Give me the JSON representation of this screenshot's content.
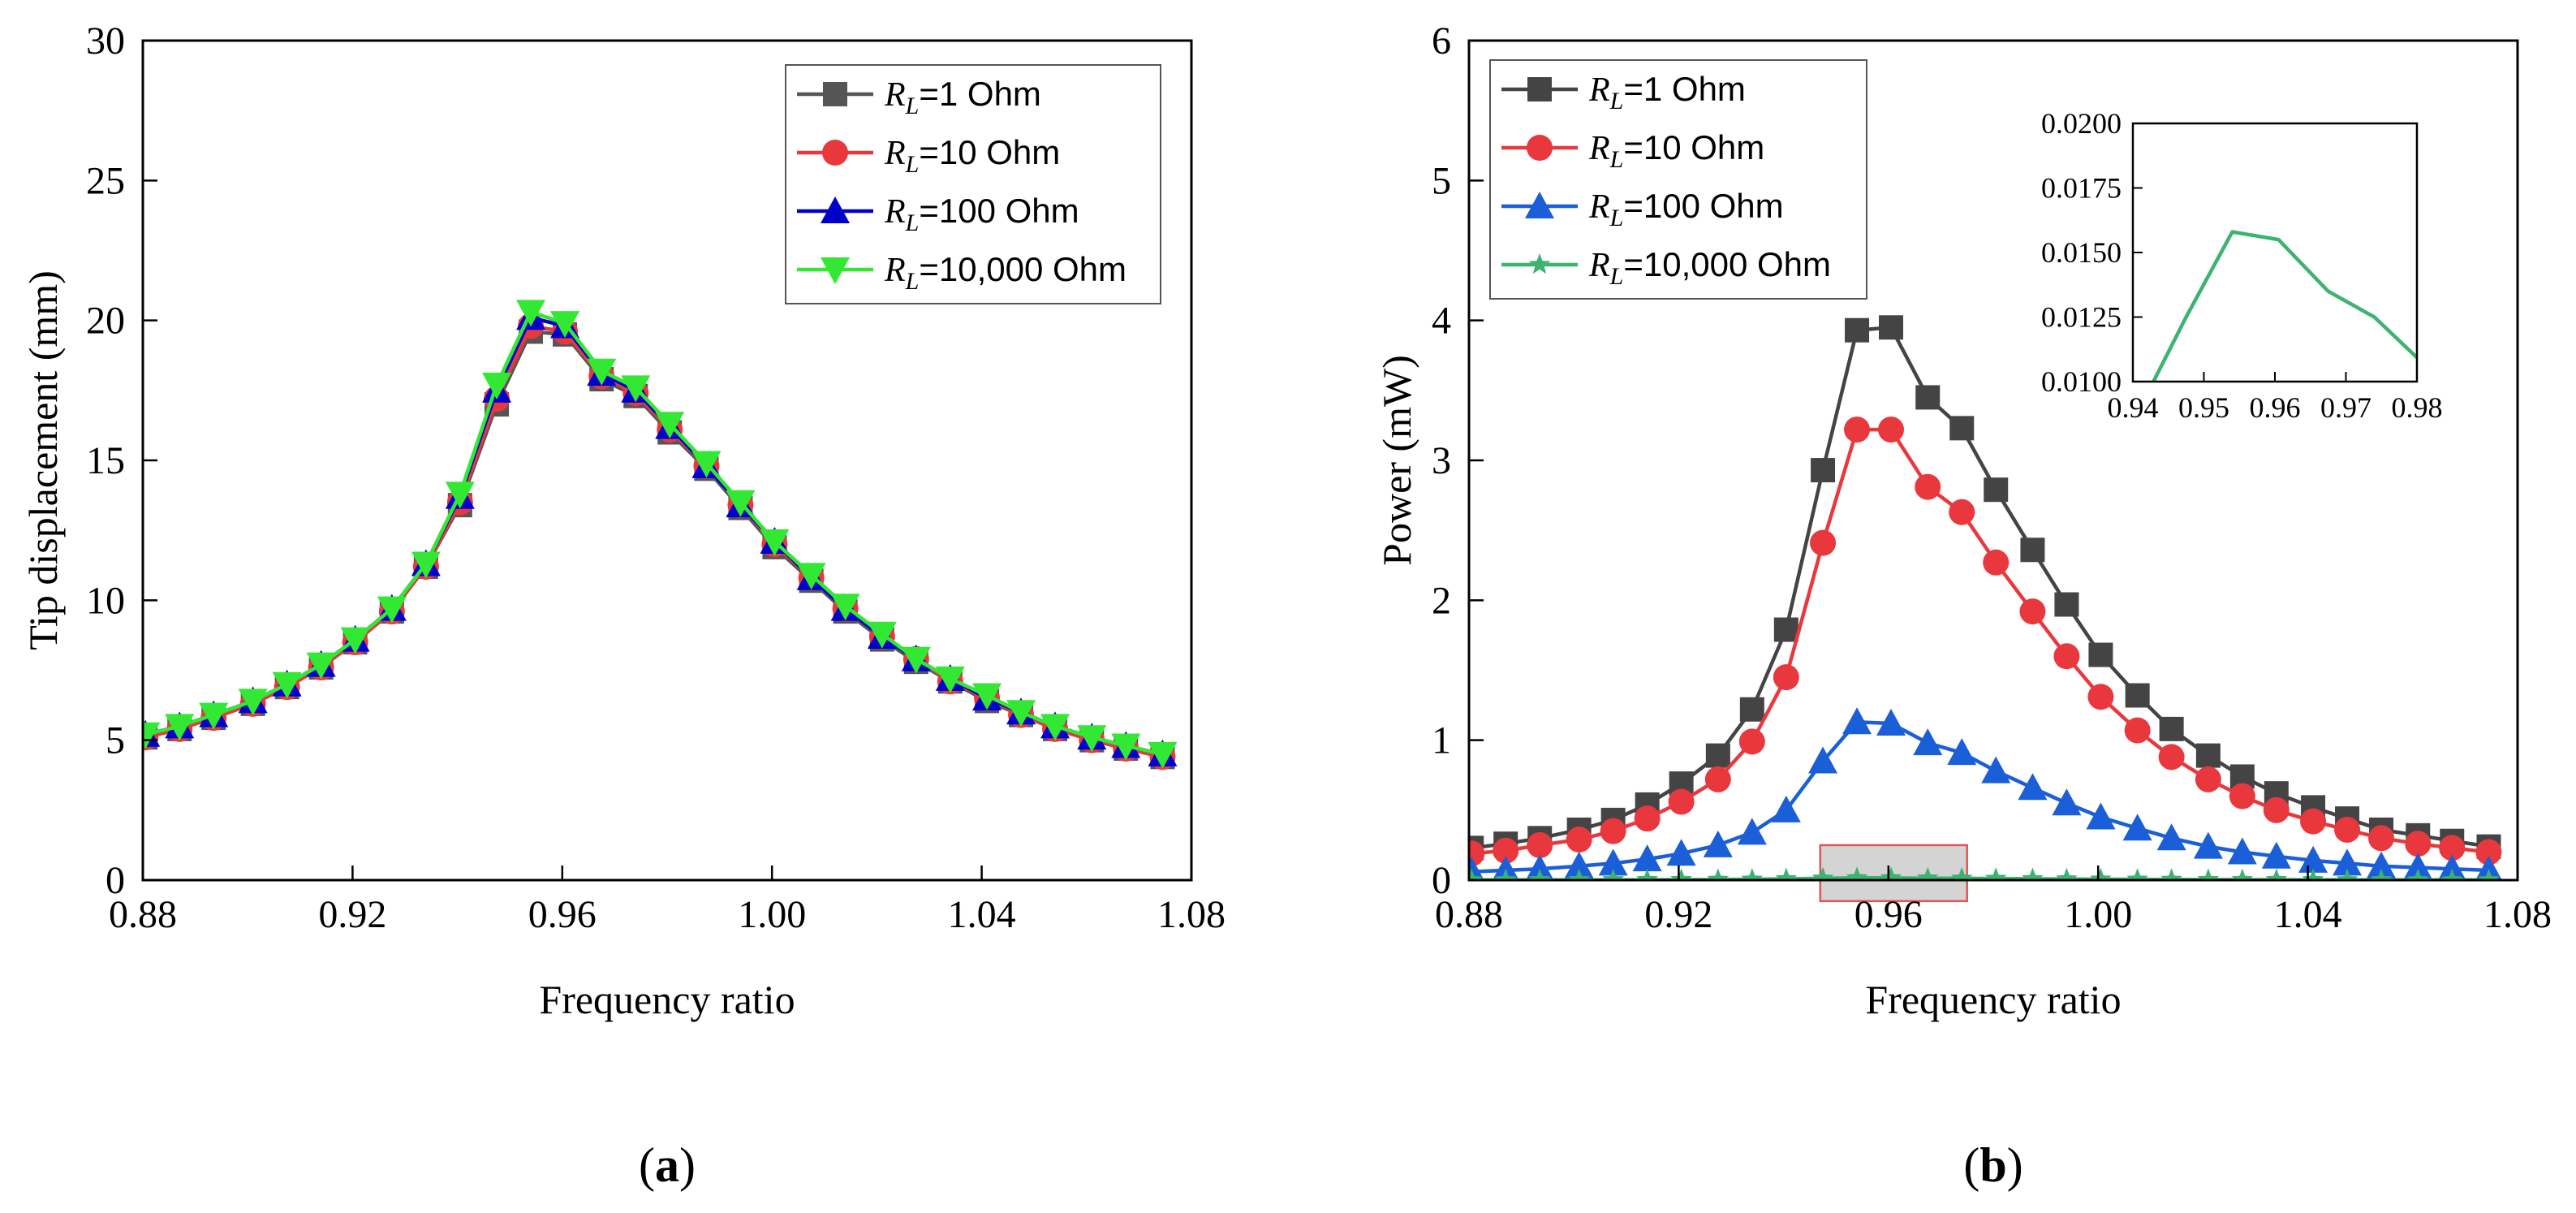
{
  "panels": {
    "a": {
      "label_open": "(",
      "label_letter": "a",
      "label_close": ")"
    },
    "b": {
      "label_open": "(",
      "label_letter": "b",
      "label_close": ")"
    }
  },
  "chart_data": [
    {
      "id": "a",
      "type": "line",
      "xlabel": "Frequency ratio",
      "ylabel": "Tip displacement (mm)",
      "xlim": [
        0.88,
        1.08
      ],
      "ylim": [
        0,
        30
      ],
      "xticks": [
        "0.88",
        "0.92",
        "0.96",
        "1.00",
        "1.04",
        "1.08"
      ],
      "xtick_values": [
        0.88,
        0.92,
        0.96,
        1.0,
        1.04,
        1.08
      ],
      "yticks": [
        "0",
        "5",
        "10",
        "15",
        "20",
        "25",
        "30"
      ],
      "ytick_values": [
        0,
        5,
        10,
        15,
        20,
        25,
        30
      ],
      "grid": false,
      "legend_position": "top-right",
      "x": [
        0.8805,
        0.887,
        0.8935,
        0.901,
        0.9075,
        0.914,
        0.9205,
        0.9275,
        0.934,
        0.9405,
        0.9475,
        0.954,
        0.9605,
        0.9675,
        0.974,
        0.9805,
        0.9875,
        0.994,
        1.0005,
        1.0075,
        1.014,
        1.021,
        1.0275,
        1.034,
        1.041,
        1.0475,
        1.054,
        1.061,
        1.0675,
        1.0745
      ],
      "series": [
        {
          "legend_prefix": "R",
          "legend_sub": "L",
          "legend_suffix": "=1 Ohm",
          "color": "#555555",
          "marker": "square",
          "values": [
            5.1,
            5.4,
            5.8,
            6.3,
            6.9,
            7.6,
            8.5,
            9.6,
            11.2,
            13.4,
            17.0,
            19.6,
            19.5,
            17.9,
            17.3,
            16.0,
            14.7,
            13.3,
            11.9,
            10.7,
            9.6,
            8.6,
            7.8,
            7.1,
            6.4,
            5.9,
            5.4,
            5.0,
            4.7,
            4.4
          ]
        },
        {
          "legend_prefix": "R",
          "legend_sub": "L",
          "legend_suffix": "=10 Ohm",
          "color": "#e8383d",
          "marker": "circle",
          "values": [
            5.1,
            5.4,
            5.8,
            6.3,
            6.9,
            7.6,
            8.5,
            9.6,
            11.2,
            13.5,
            17.2,
            19.8,
            19.6,
            18.0,
            17.4,
            16.1,
            14.8,
            13.4,
            12.0,
            10.8,
            9.7,
            8.7,
            7.9,
            7.1,
            6.5,
            5.9,
            5.4,
            5.0,
            4.7,
            4.4
          ]
        },
        {
          "legend_prefix": "R",
          "legend_sub": "L",
          "legend_suffix": "=100 Ohm",
          "color": "#0000cc",
          "marker": "triangle",
          "values": [
            5.2,
            5.5,
            5.9,
            6.4,
            7.0,
            7.7,
            8.6,
            9.7,
            11.3,
            13.7,
            17.5,
            20.1,
            19.8,
            18.1,
            17.5,
            16.2,
            14.8,
            13.4,
            12.1,
            10.8,
            9.7,
            8.7,
            7.9,
            7.2,
            6.5,
            6.0,
            5.5,
            5.1,
            4.8,
            4.5
          ]
        },
        {
          "legend_prefix": "R",
          "legend_sub": "L",
          "legend_suffix": "=10,000 Ohm",
          "color": "#33e833",
          "marker": "triangle-down",
          "values": [
            5.2,
            5.5,
            5.9,
            6.4,
            7.0,
            7.7,
            8.6,
            9.7,
            11.3,
            13.8,
            17.7,
            20.3,
            19.9,
            18.2,
            17.6,
            16.3,
            14.9,
            13.5,
            12.1,
            10.9,
            9.8,
            8.8,
            7.9,
            7.2,
            6.6,
            6.0,
            5.5,
            5.1,
            4.8,
            4.5
          ]
        }
      ]
    },
    {
      "id": "b",
      "type": "line",
      "xlabel": "Frequency ratio",
      "ylabel": "Power (mW)",
      "xlim": [
        0.88,
        1.08
      ],
      "ylim": [
        0,
        6
      ],
      "xticks": [
        "0.88",
        "0.92",
        "0.96",
        "1.00",
        "1.04",
        "1.08"
      ],
      "xtick_values": [
        0.88,
        0.92,
        0.96,
        1.0,
        1.04,
        1.08
      ],
      "yticks": [
        "0",
        "1",
        "2",
        "3",
        "4",
        "5",
        "6"
      ],
      "ytick_values": [
        0,
        1,
        2,
        3,
        4,
        5,
        6
      ],
      "grid": false,
      "legend_position": "top-left",
      "x": [
        0.8805,
        0.887,
        0.8935,
        0.901,
        0.9075,
        0.914,
        0.9205,
        0.9275,
        0.934,
        0.9405,
        0.9475,
        0.954,
        0.9605,
        0.9675,
        0.974,
        0.9805,
        0.9875,
        0.994,
        1.0005,
        1.0075,
        1.014,
        1.021,
        1.0275,
        1.034,
        1.041,
        1.0475,
        1.054,
        1.061,
        1.0675,
        1.0745
      ],
      "series": [
        {
          "legend_prefix": "R",
          "legend_sub": "L",
          "legend_suffix": "=1 Ohm",
          "color": "#444444",
          "marker": "square",
          "values": [
            0.23,
            0.26,
            0.3,
            0.36,
            0.43,
            0.54,
            0.69,
            0.89,
            1.22,
            1.79,
            2.93,
            3.93,
            3.95,
            3.45,
            3.23,
            2.79,
            2.36,
            1.97,
            1.61,
            1.32,
            1.08,
            0.89,
            0.74,
            0.62,
            0.52,
            0.44,
            0.36,
            0.32,
            0.28,
            0.24
          ]
        },
        {
          "legend_prefix": "R",
          "legend_sub": "L",
          "legend_suffix": "=10 Ohm",
          "color": "#e8383d",
          "marker": "circle",
          "values": [
            0.19,
            0.21,
            0.25,
            0.29,
            0.35,
            0.44,
            0.56,
            0.72,
            0.99,
            1.45,
            2.41,
            3.22,
            3.22,
            2.81,
            2.63,
            2.27,
            1.92,
            1.6,
            1.31,
            1.07,
            0.88,
            0.72,
            0.6,
            0.5,
            0.42,
            0.36,
            0.3,
            0.26,
            0.23,
            0.2
          ]
        },
        {
          "legend_prefix": "R",
          "legend_sub": "L",
          "legend_suffix": "=100 Ohm",
          "color": "#1a5fd8",
          "marker": "triangle",
          "values": [
            0.06,
            0.07,
            0.08,
            0.1,
            0.12,
            0.15,
            0.19,
            0.25,
            0.34,
            0.5,
            0.85,
            1.13,
            1.12,
            0.98,
            0.91,
            0.78,
            0.66,
            0.55,
            0.45,
            0.37,
            0.3,
            0.24,
            0.2,
            0.17,
            0.14,
            0.12,
            0.1,
            0.09,
            0.08,
            0.07
          ]
        },
        {
          "legend_prefix": "R",
          "legend_sub": "L",
          "legend_suffix": "=10,000 Ohm",
          "color": "#3cb371",
          "marker": "star",
          "values": [
            0.001,
            0.0011,
            0.0013,
            0.0016,
            0.0019,
            0.0024,
            0.0031,
            0.0041,
            0.0058,
            0.0087,
            0.0125,
            0.0158,
            0.0155,
            0.0135,
            0.0125,
            0.0108,
            0.0091,
            0.0076,
            0.0062,
            0.0051,
            0.0042,
            0.0034,
            0.0028,
            0.0024,
            0.002,
            0.0017,
            0.0014,
            0.0012,
            0.0011,
            0.0009
          ]
        }
      ],
      "highlight_region": {
        "x": [
          0.947,
          0.975
        ],
        "y": [
          -0.15,
          0.25
        ]
      },
      "inset": {
        "type": "line",
        "xlim": [
          0.94,
          0.98
        ],
        "ylim": [
          0.01,
          0.02
        ],
        "xticks": [
          "0.94",
          "0.95",
          "0.96",
          "0.97",
          "0.98"
        ],
        "xtick_values": [
          0.94,
          0.95,
          0.96,
          0.97,
          0.98
        ],
        "yticks": [
          "0.0100",
          "0.0125",
          "0.0150",
          "0.0175",
          "0.0200"
        ],
        "ytick_values": [
          0.01,
          0.0125,
          0.015,
          0.0175,
          0.02
        ],
        "color": "#3cb371",
        "x": [
          0.9405,
          0.9475,
          0.954,
          0.9605,
          0.9675,
          0.974,
          0.9805
        ],
        "values": [
          0.0087,
          0.0125,
          0.0158,
          0.0155,
          0.0135,
          0.0125,
          0.0108
        ]
      }
    }
  ]
}
